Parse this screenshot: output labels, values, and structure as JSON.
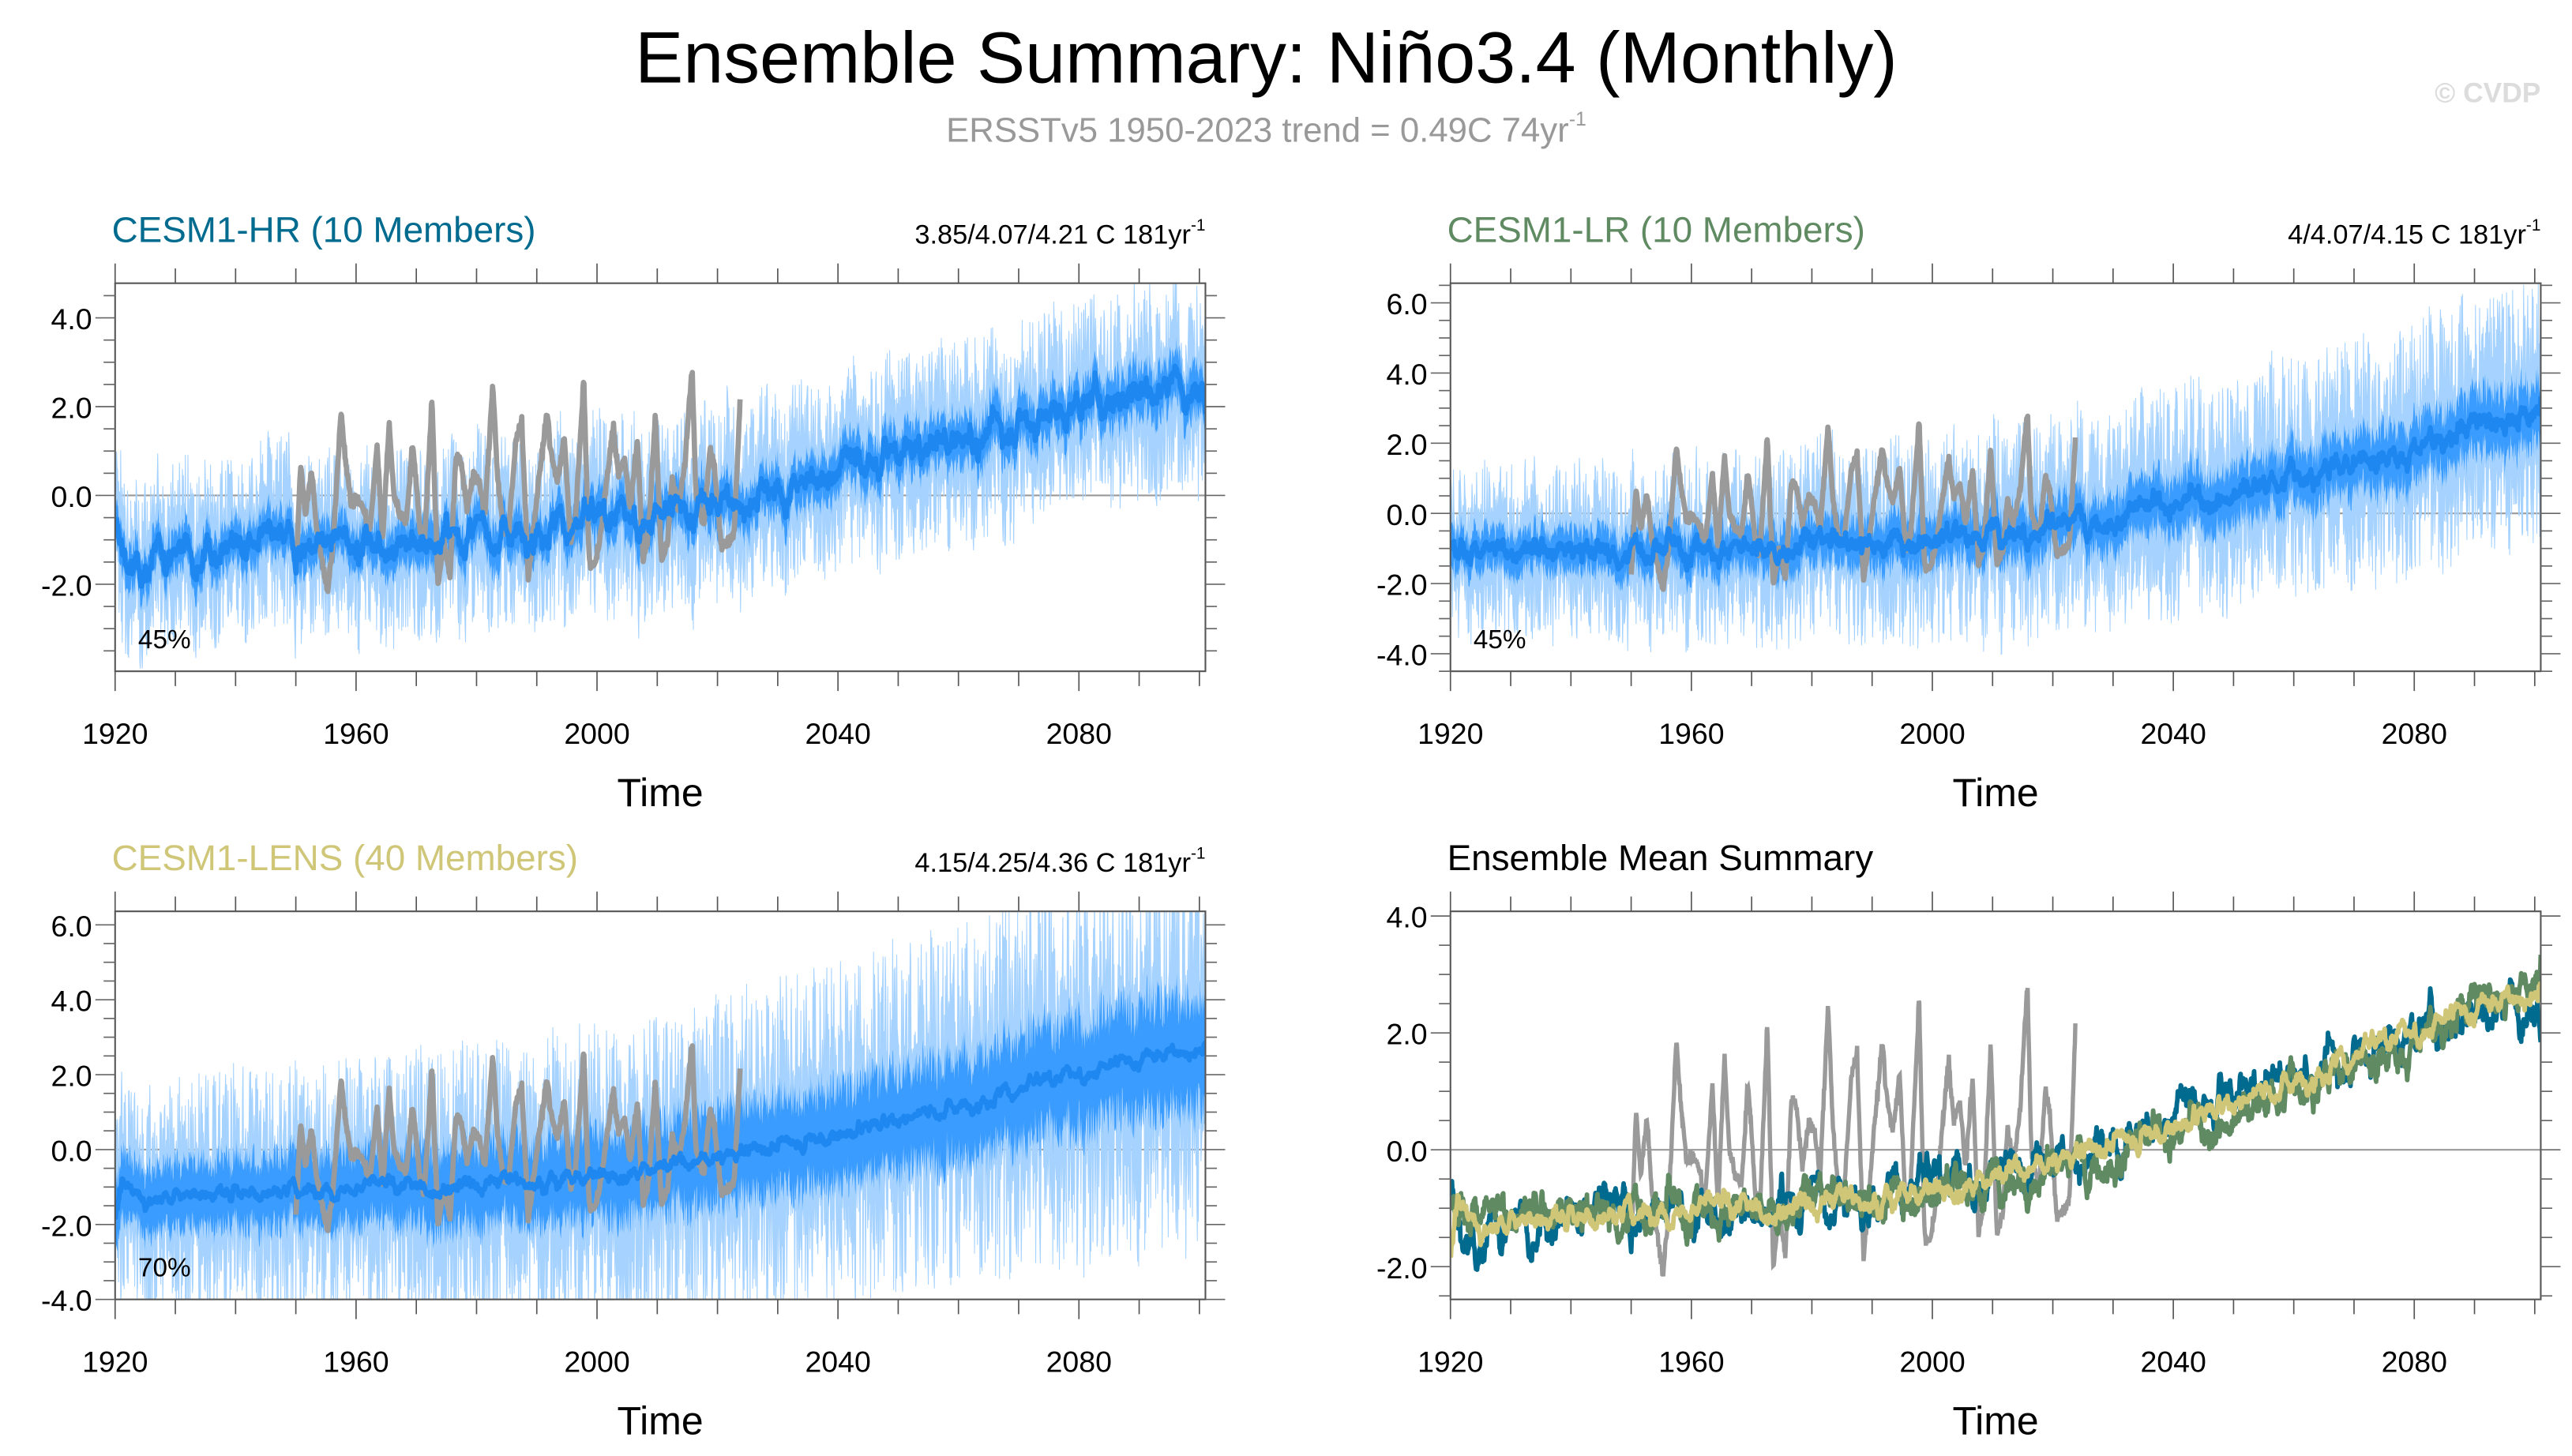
{
  "title": "Ensemble Summary: Niño3.4 (Monthly)",
  "subtitle": {
    "text": "ERSSTv5 1950-2023 trend = 0.49C 74yr",
    "sup": "-1"
  },
  "watermark": "© CVDP",
  "colors": {
    "obs": "#9a9a9a",
    "mean_blue": "#1e88f0",
    "band_inner": "#3a9cff",
    "band_outer": "#a5d2ff",
    "hr": "#006b8f",
    "lr": "#5f8a62",
    "lens": "#cfc678",
    "zero_line": "#999999"
  },
  "observations": {
    "name": "ERSSTv5",
    "points": [
      [
        1950,
        -1.8
      ],
      [
        1950.8,
        0.7
      ],
      [
        1951.6,
        -0.5
      ],
      [
        1952.6,
        0.6
      ],
      [
        1953.5,
        -0.8
      ],
      [
        1955.3,
        -2.2
      ],
      [
        1956.2,
        -1.0
      ],
      [
        1957.5,
        1.9
      ],
      [
        1958.4,
        0.6
      ],
      [
        1959.2,
        -0.2
      ],
      [
        1960.2,
        -0.1
      ],
      [
        1961.2,
        -0.3
      ],
      [
        1962.3,
        -0.8
      ],
      [
        1963.5,
        1.1
      ],
      [
        1964.4,
        -1.0
      ],
      [
        1965.5,
        1.6
      ],
      [
        1966.3,
        0.0
      ],
      [
        1967.2,
        -0.4
      ],
      [
        1968.3,
        -0.6
      ],
      [
        1969.4,
        1.2
      ],
      [
        1970.5,
        -0.6
      ],
      [
        1971.3,
        -1.2
      ],
      [
        1972.6,
        2.2
      ],
      [
        1973.6,
        -2.1
      ],
      [
        1974.5,
        -1.0
      ],
      [
        1975.6,
        -1.8
      ],
      [
        1976.6,
        0.9
      ],
      [
        1977.5,
        0.7
      ],
      [
        1978.4,
        -0.3
      ],
      [
        1979.5,
        0.5
      ],
      [
        1980.4,
        0.3
      ],
      [
        1981.4,
        -0.4
      ],
      [
        1982.7,
        2.5
      ],
      [
        1983.5,
        0.4
      ],
      [
        1984.5,
        -0.8
      ],
      [
        1985.3,
        -0.9
      ],
      [
        1986.5,
        1.2
      ],
      [
        1987.5,
        1.7
      ],
      [
        1988.6,
        -1.9
      ],
      [
        1989.4,
        -0.8
      ],
      [
        1990.4,
        0.4
      ],
      [
        1991.7,
        1.9
      ],
      [
        1992.4,
        0.9
      ],
      [
        1993.4,
        0.3
      ],
      [
        1994.6,
        1.3
      ],
      [
        1995.6,
        -1.0
      ],
      [
        1996.4,
        -0.6
      ],
      [
        1997.8,
        2.6
      ],
      [
        1998.7,
        -1.5
      ],
      [
        1999.6,
        -1.6
      ],
      [
        2000.6,
        -0.9
      ],
      [
        2002.7,
        1.6
      ],
      [
        2003.5,
        0.5
      ],
      [
        2004.6,
        0.8
      ],
      [
        2005.5,
        -0.3
      ],
      [
        2006.7,
        1.2
      ],
      [
        2007.7,
        -1.5
      ],
      [
        2008.5,
        -0.9
      ],
      [
        2009.7,
        1.8
      ],
      [
        2010.7,
        -1.5
      ],
      [
        2011.7,
        -1.0
      ],
      [
        2012.5,
        0.4
      ],
      [
        2013.4,
        -0.3
      ],
      [
        2014.5,
        0.6
      ],
      [
        2015.8,
        2.9
      ],
      [
        2016.4,
        0.0
      ],
      [
        2017.7,
        -0.7
      ],
      [
        2018.8,
        1.1
      ],
      [
        2019.5,
        0.6
      ],
      [
        2020.7,
        -1.2
      ],
      [
        2021.8,
        -1.0
      ],
      [
        2022.7,
        -0.9
      ],
      [
        2023.8,
        2.2
      ]
    ]
  },
  "chart_data": [
    {
      "type": "line",
      "title": "CESM1-HR (10 Members)",
      "trend_text": "3.85/4.07/4.21 C 181yr",
      "trend_sup": "-1",
      "percent_label": "45%",
      "xlabel": "Time",
      "ylabel": "",
      "xlim": [
        1920,
        2101
      ],
      "ylim": [
        -3.96,
        4.78
      ],
      "xticks": [
        1920,
        1960,
        2000,
        2040,
        2080
      ],
      "xtick_labels": [
        "1920",
        "1960",
        "2000",
        "2040",
        "2080"
      ],
      "yticks": [
        -2,
        0,
        2,
        4
      ],
      "ytick_labels": [
        "-2.0",
        "0.0",
        "2.0",
        "4.0"
      ],
      "series": [
        {
          "name": "CESM1-HR ensemble mean",
          "color_key": "mean_blue",
          "anchors": [
            [
              1920,
              -0.8
            ],
            [
              1923,
              -1.8
            ],
            [
              1930,
              -1.2
            ],
            [
              1940,
              -1.1
            ],
            [
              1950,
              -1.1
            ],
            [
              1960,
              -1.0
            ],
            [
              1970,
              -1.0
            ],
            [
              1980,
              -0.9
            ],
            [
              1990,
              -0.7
            ],
            [
              2000,
              -0.6
            ],
            [
              2010,
              -0.5
            ],
            [
              2020,
              -0.2
            ],
            [
              2030,
              0.0
            ],
            [
              2040,
              0.6
            ],
            [
              2050,
              0.9
            ],
            [
              2060,
              1.2
            ],
            [
              2070,
              1.6
            ],
            [
              2080,
              2.0
            ],
            [
              2090,
              2.4
            ],
            [
              2100,
              2.7
            ],
            [
              2101,
              2.2
            ]
          ],
          "spread_inner": 0.5,
          "spread_outer": 1.2,
          "spread_growth": 0.2
        },
        {
          "name": "ERSSTv5",
          "color_key": "obs"
        }
      ]
    },
    {
      "type": "line",
      "title": "CESM1-LR (10 Members)",
      "trend_text": "4/4.07/4.15 C 181yr",
      "trend_sup": "-1",
      "percent_label": "45%",
      "xlabel": "Time",
      "ylabel": "",
      "xlim": [
        1920,
        2101
      ],
      "ylim": [
        -4.5,
        6.56
      ],
      "xticks": [
        1920,
        1960,
        2000,
        2040,
        2080
      ],
      "xtick_labels": [
        "1920",
        "1960",
        "2000",
        "2040",
        "2080"
      ],
      "yticks": [
        -4,
        -2,
        0,
        2,
        4,
        6
      ],
      "ytick_labels": [
        "-4.0",
        "-2.0",
        "0.0",
        "2.0",
        "4.0",
        "6.0"
      ],
      "series": [
        {
          "name": "CESM1-LR ensemble mean",
          "color_key": "mean_blue",
          "anchors": [
            [
              1920,
              -1.1
            ],
            [
              1930,
              -1.1
            ],
            [
              1940,
              -1.1
            ],
            [
              1950,
              -1.1
            ],
            [
              1960,
              -1.0
            ],
            [
              1970,
              -1.0
            ],
            [
              1980,
              -0.9
            ],
            [
              1990,
              -0.8
            ],
            [
              2000,
              -0.7
            ],
            [
              2010,
              -0.5
            ],
            [
              2020,
              -0.3
            ],
            [
              2030,
              -0.1
            ],
            [
              2040,
              0.3
            ],
            [
              2050,
              0.6
            ],
            [
              2060,
              1.1
            ],
            [
              2070,
              1.5
            ],
            [
              2080,
              1.9
            ],
            [
              2090,
              2.5
            ],
            [
              2100,
              2.8
            ],
            [
              2101,
              3.4
            ]
          ],
          "spread_inner": 0.6,
          "spread_outer": 1.4,
          "spread_growth": 0.6
        },
        {
          "name": "ERSSTv5",
          "color_key": "obs"
        }
      ]
    },
    {
      "type": "line",
      "title": "CESM1-LENS (40 Members)",
      "trend_text": "4.15/4.25/4.36 C 181yr",
      "trend_sup": "-1",
      "percent_label": "70%",
      "xlabel": "Time",
      "ylabel": "",
      "xlim": [
        1920,
        2101
      ],
      "ylim": [
        -4.0,
        6.36
      ],
      "xticks": [
        1920,
        1960,
        2000,
        2040,
        2080
      ],
      "xtick_labels": [
        "1920",
        "1960",
        "2000",
        "2040",
        "2080"
      ],
      "yticks": [
        -4,
        -2,
        0,
        2,
        4,
        6
      ],
      "ytick_labels": [
        "-4.0",
        "-2.0",
        "0.0",
        "2.0",
        "4.0",
        "6.0"
      ],
      "series": [
        {
          "name": "CESM1-LENS ensemble mean",
          "color_key": "mean_blue",
          "anchors": [
            [
              1920,
              -1.8
            ],
            [
              1921,
              -0.9
            ],
            [
              1925,
              -1.3
            ],
            [
              1930,
              -1.2
            ],
            [
              1940,
              -1.1
            ],
            [
              1950,
              -1.1
            ],
            [
              1960,
              -1.0
            ],
            [
              1970,
              -1.0
            ],
            [
              1980,
              -0.9
            ],
            [
              1990,
              -0.8
            ],
            [
              2000,
              -0.7
            ],
            [
              2010,
              -0.5
            ],
            [
              2020,
              -0.2
            ],
            [
              2030,
              0.1
            ],
            [
              2040,
              0.4
            ],
            [
              2050,
              0.8
            ],
            [
              2060,
              1.2
            ],
            [
              2070,
              1.6
            ],
            [
              2080,
              2.0
            ],
            [
              2090,
              2.4
            ],
            [
              2100,
              2.7
            ]
          ],
          "spread_inner": 0.9,
          "spread_outer": 1.8,
          "spread_growth": 0.8
        },
        {
          "name": "ERSSTv5",
          "color_key": "obs"
        }
      ]
    },
    {
      "type": "line",
      "title": "Ensemble Mean Summary",
      "xlabel": "Time",
      "ylabel": "",
      "xlim": [
        1920,
        2101
      ],
      "ylim": [
        -2.56,
        4.08
      ],
      "xticks": [
        1920,
        1960,
        2000,
        2040,
        2080
      ],
      "xtick_labels": [
        "1920",
        "1960",
        "2000",
        "2040",
        "2080"
      ],
      "yticks": [
        -2,
        0,
        2,
        4
      ],
      "ytick_labels": [
        "-2.0",
        "0.0",
        "2.0",
        "4.0"
      ],
      "series": [
        {
          "name": "ERSSTv5",
          "color_key": "obs"
        },
        {
          "name": "CESM1-HR",
          "color_key": "hr",
          "from_panel": 0
        },
        {
          "name": "CESM1-LR",
          "color_key": "lr",
          "from_panel": 1
        },
        {
          "name": "CESM1-LENS",
          "color_key": "lens",
          "from_panel": 2
        }
      ]
    }
  ]
}
